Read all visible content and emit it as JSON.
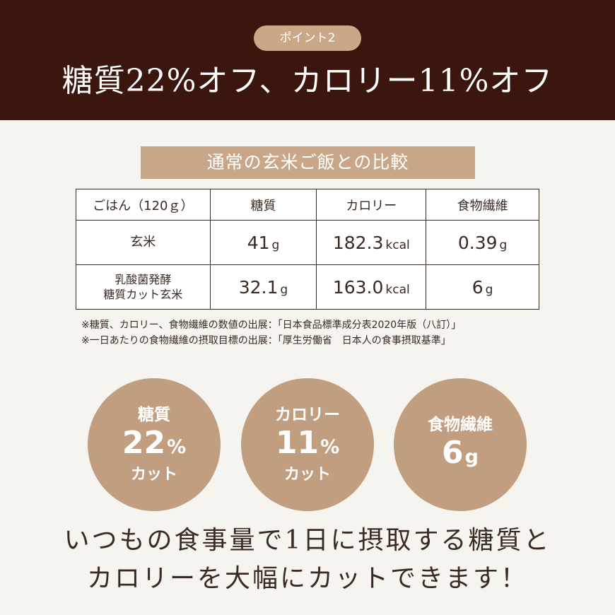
{
  "header": {
    "badge": "ポイント2",
    "headline": "糖質22%オフ、カロリー11%オフ"
  },
  "comparison": {
    "title": "通常の玄米ご飯との比較",
    "columns": [
      "ごはん（120ｇ）",
      "糖質",
      "カロリー",
      "食物繊維"
    ],
    "rows": [
      {
        "label_lines": [
          "玄米"
        ],
        "carbs": "41",
        "carbs_unit": "g",
        "calories": "182.3",
        "calories_unit": "kcal",
        "fiber": "0.39",
        "fiber_unit": "g"
      },
      {
        "label_lines": [
          "乳酸菌発酵",
          "糖質カット玄米"
        ],
        "carbs": "32.1",
        "carbs_unit": "g",
        "calories": "163.0",
        "calories_unit": "kcal",
        "fiber": "6",
        "fiber_unit": "g"
      }
    ],
    "notes": [
      "※糖質、カロリー、食物繊維の数値の出展：「日本食品標準成分表2020年版（八訂）」",
      "※一日あたりの食物繊維の摂取目標の出展：「厚生労働省　日本人の食事摂取基準」"
    ]
  },
  "circles": [
    {
      "label": "糖質",
      "value": "22",
      "unit": "%",
      "sub": "カット"
    },
    {
      "label": "カロリー",
      "value": "11",
      "unit": "%",
      "sub": "カット"
    },
    {
      "label": "食物繊維",
      "value": "6",
      "unit": "g",
      "sub": ""
    }
  ],
  "bottom": {
    "line1": "いつもの食事量で1日に摂取する糖質と",
    "line2": "カロリーを大幅にカットできます！"
  },
  "colors": {
    "header_bg": "#3a160e",
    "accent": "#c9a687",
    "highlight_text": "#c29a76",
    "page_bg": "#f6f4ee"
  }
}
